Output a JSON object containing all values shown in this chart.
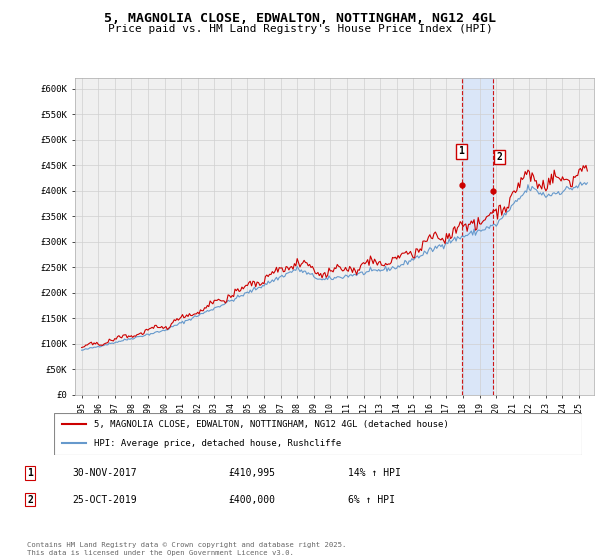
{
  "title": "5, MAGNOLIA CLOSE, EDWALTON, NOTTINGHAM, NG12 4GL",
  "subtitle": "Price paid vs. HM Land Registry's House Price Index (HPI)",
  "ylim": [
    0,
    620000
  ],
  "yticks": [
    0,
    50000,
    100000,
    150000,
    200000,
    250000,
    300000,
    350000,
    400000,
    450000,
    500000,
    550000,
    600000
  ],
  "ytick_labels": [
    "£0",
    "£50K",
    "£100K",
    "£150K",
    "£200K",
    "£250K",
    "£300K",
    "£350K",
    "£400K",
    "£450K",
    "£500K",
    "£550K",
    "£600K"
  ],
  "line1_color": "#cc0000",
  "line2_color": "#6699cc",
  "sale1_value": 410995,
  "sale2_value": 400000,
  "sale1_year": 2017.9167,
  "sale2_year": 2019.7917,
  "legend_line1": "5, MAGNOLIA CLOSE, EDWALTON, NOTTINGHAM, NG12 4GL (detached house)",
  "legend_line2": "HPI: Average price, detached house, Rushcliffe",
  "annotation1_label": "1",
  "annotation1_date": "30-NOV-2017",
  "annotation1_price": "£410,995",
  "annotation1_hpi": "14% ↑ HPI",
  "annotation2_label": "2",
  "annotation2_date": "25-OCT-2019",
  "annotation2_price": "£400,000",
  "annotation2_hpi": "6% ↑ HPI",
  "footer": "Contains HM Land Registry data © Crown copyright and database right 2025.\nThis data is licensed under the Open Government Licence v3.0.",
  "bg_color": "#ffffff",
  "plot_bg_color": "#f0f0f0",
  "grid_color": "#d0d0d0",
  "shade_color": "#cce0ff"
}
